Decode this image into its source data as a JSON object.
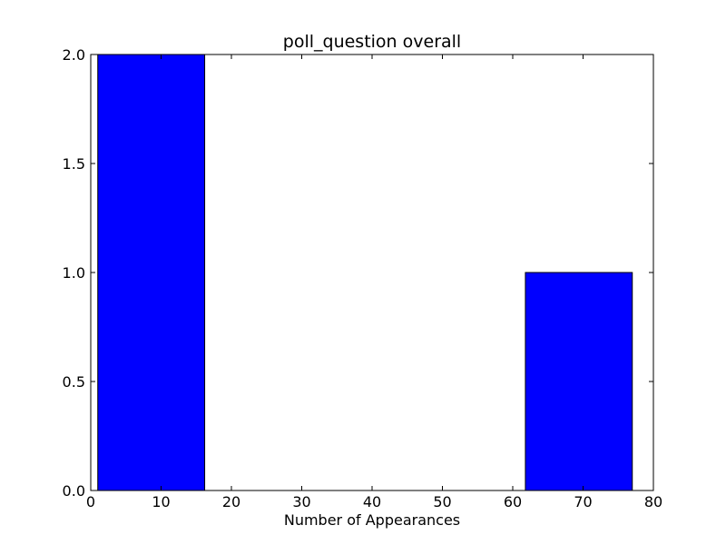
{
  "chart_data": {
    "type": "bar",
    "title": "poll_question overall",
    "xlabel": "Number of Appearances",
    "ylabel": "",
    "xlim": [
      0,
      80
    ],
    "ylim": [
      0,
      2
    ],
    "xticks": [
      "0",
      "10",
      "20",
      "30",
      "40",
      "50",
      "60",
      "70",
      "80"
    ],
    "yticks": [
      "0.0",
      "0.5",
      "1.0",
      "1.5",
      "2.0"
    ],
    "grid": false,
    "bar_color": "#0000ff",
    "bars": [
      {
        "x0": 1,
        "x1": 16.2,
        "value": 2
      },
      {
        "x0": 61.8,
        "x1": 77,
        "value": 1
      }
    ]
  }
}
